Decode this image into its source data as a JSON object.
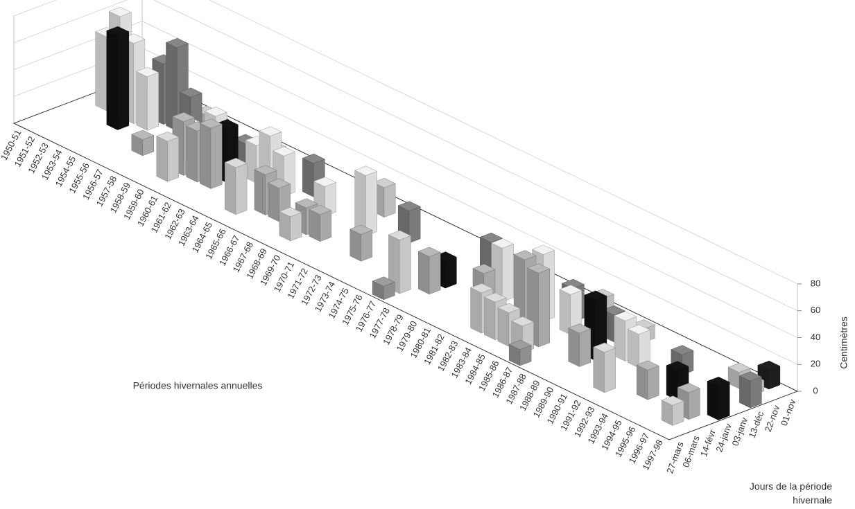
{
  "chart_data": {
    "type": "bar3d",
    "xlabel": "Périodes hivernales annuelles",
    "zlabel": "Jours de la période hivernale",
    "ylabel": "Centimètres",
    "categories": [
      "1950-51",
      "1951-52",
      "1952-53",
      "1953-54",
      "1954-55",
      "1955-56",
      "1956-57",
      "1957-58",
      "1958-59",
      "1959-60",
      "1960-61",
      "1961-62",
      "1962-63",
      "1963-64",
      "1964-65",
      "1965-66",
      "1966-67",
      "1967-68",
      "1968-69",
      "1969-70",
      "1970-71",
      "1971-72",
      "1972-73",
      "1973-74",
      "1974-75",
      "1975-76",
      "1976-77",
      "1977-78",
      "1978-79",
      "1979-80",
      "1980-81",
      "1981-82",
      "1982-83",
      "1983-84",
      "1984-85",
      "1985-86",
      "1986-87",
      "1987-88",
      "1988-89",
      "1989-90",
      "1990-91",
      "1991-92",
      "1992-93",
      "1993-94",
      "1994-95",
      "1995-96",
      "1996-97",
      "1997-98"
    ],
    "ylim": [
      0,
      80
    ],
    "yticks": [
      0,
      20,
      40,
      60,
      80
    ],
    "grid": true,
    "series": [
      {
        "name": "01-nov",
        "color": "#1e1e1e",
        "values": [
          6,
          null,
          null,
          5,
          null,
          null,
          null,
          null,
          null,
          null,
          null,
          null,
          null,
          null,
          null,
          null,
          null,
          null,
          null,
          null,
          null,
          null,
          null,
          null,
          null,
          null,
          null,
          null,
          null,
          null,
          null,
          null,
          null,
          null,
          null,
          null,
          null,
          null,
          null,
          null,
          null,
          null,
          null,
          null,
          null,
          null,
          14,
          null
        ]
      },
      {
        "name": "22-nov",
        "color": "#bdbdbd",
        "values": [
          null,
          null,
          null,
          8,
          null,
          null,
          12,
          null,
          null,
          null,
          null,
          10,
          null,
          null,
          null,
          null,
          null,
          null,
          null,
          22,
          null,
          null,
          null,
          null,
          null,
          null,
          null,
          null,
          null,
          null,
          null,
          null,
          null,
          null,
          null,
          18,
          null,
          null,
          10,
          null,
          null,
          null,
          null,
          null,
          null,
          12,
          8,
          null
        ]
      },
      {
        "name": "13-déc",
        "color": "#7a7a7a",
        "values": [
          null,
          null,
          4,
          null,
          45,
          62,
          30,
          null,
          20,
          null,
          15,
          null,
          null,
          null,
          null,
          25,
          null,
          null,
          null,
          null,
          null,
          null,
          24,
          null,
          null,
          null,
          null,
          null,
          30,
          null,
          null,
          null,
          null,
          null,
          25,
          null,
          null,
          20,
          null,
          null,
          null,
          null,
          15,
          null,
          null,
          null,
          null,
          20
        ]
      },
      {
        "name": "03-janv",
        "color": "#dcdcdc",
        "values": [
          null,
          55,
          75,
          60,
          40,
          null,
          null,
          18,
          null,
          35,
          null,
          null,
          28,
          40,
          30,
          null,
          null,
          22,
          null,
          null,
          45,
          null,
          null,
          null,
          null,
          null,
          null,
          null,
          null,
          null,
          40,
          null,
          null,
          50,
          null,
          30,
          null,
          null,
          null,
          30,
          25,
          null,
          null,
          null,
          null,
          null,
          null,
          null
        ]
      },
      {
        "name": "24-janv",
        "color": "#111111",
        "values": [
          null,
          null,
          null,
          70,
          null,
          null,
          null,
          null,
          25,
          null,
          null,
          40,
          null,
          null,
          null,
          null,
          null,
          null,
          null,
          null,
          null,
          null,
          null,
          null,
          null,
          null,
          null,
          20,
          null,
          null,
          null,
          null,
          null,
          null,
          null,
          null,
          null,
          null,
          45,
          null,
          null,
          null,
          null,
          null,
          22,
          null,
          null,
          25
        ]
      },
      {
        "name": "14-févr",
        "color": "#a8a8a8",
        "values": [
          null,
          null,
          null,
          null,
          null,
          null,
          12,
          null,
          null,
          40,
          38,
          45,
          null,
          null,
          null,
          30,
          25,
          null,
          20,
          20,
          null,
          null,
          20,
          null,
          null,
          null,
          null,
          28,
          null,
          null,
          null,
          35,
          null,
          null,
          60,
          55,
          null,
          null,
          25,
          null,
          null,
          null,
          null,
          22,
          null,
          null,
          20,
          null
        ]
      },
      {
        "name": "06-mars",
        "color": "#c8c8c8",
        "values": [
          null,
          null,
          null,
          null,
          null,
          null,
          null,
          null,
          null,
          30,
          null,
          null,
          null,
          null,
          35,
          null,
          null,
          null,
          18,
          null,
          null,
          null,
          null,
          null,
          null,
          null,
          40,
          null,
          null,
          null,
          null,
          null,
          30,
          28,
          25,
          20,
          null,
          null,
          null,
          null,
          null,
          30,
          null,
          null,
          null,
          null,
          15,
          null
        ]
      },
      {
        "name": "27-mars",
        "color": "#8f8f8f",
        "values": [
          null,
          null,
          null,
          null,
          null,
          null,
          null,
          null,
          null,
          null,
          null,
          null,
          null,
          null,
          null,
          null,
          null,
          null,
          null,
          null,
          null,
          null,
          null,
          null,
          null,
          null,
          10,
          null,
          null,
          null,
          null,
          null,
          null,
          null,
          null,
          null,
          12,
          null,
          null,
          null,
          null,
          null,
          null,
          null,
          null,
          null,
          null,
          null
        ]
      }
    ]
  }
}
